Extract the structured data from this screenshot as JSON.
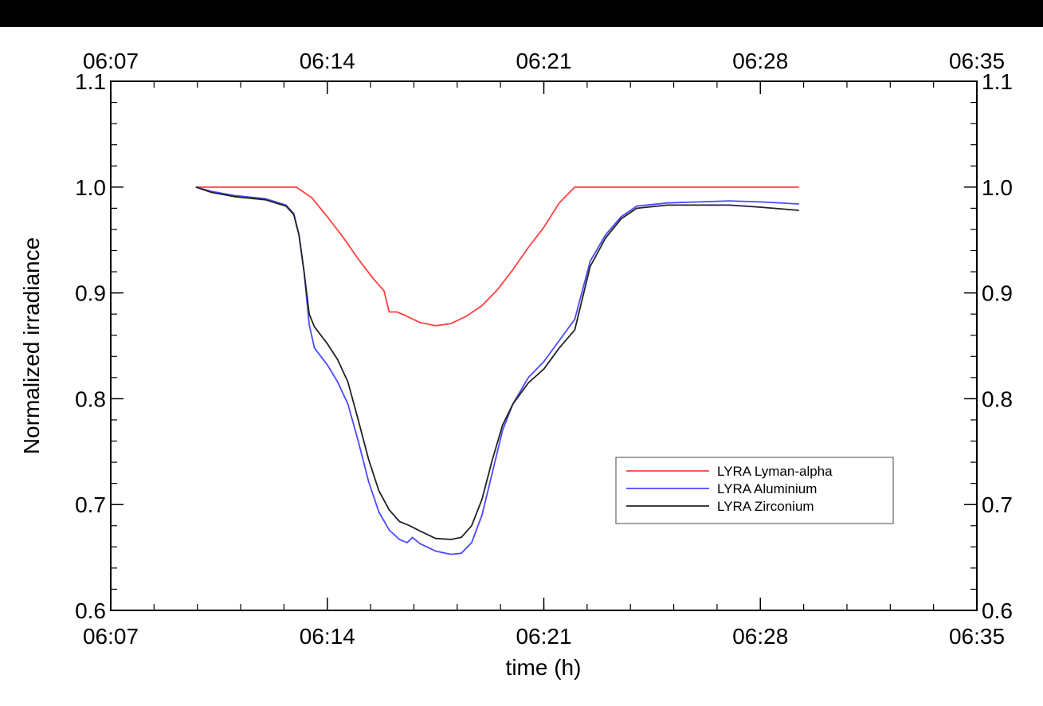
{
  "chart_data": {
    "type": "line",
    "xlabel": "time (h)",
    "ylabel": "Normalized irradiance",
    "xlim": [
      "06:07",
      "06:35"
    ],
    "ylim": [
      0.6,
      1.1
    ],
    "x_ticks": [
      "06:07",
      "06:14",
      "06:21",
      "06:28",
      "06:35"
    ],
    "y_ticks": [
      "0.6",
      "0.7",
      "0.8",
      "0.9",
      "1.0",
      "1.1"
    ],
    "top_axis_ticks": [
      "06:07",
      "06:14",
      "06:21",
      "06:28",
      "06:35"
    ],
    "right_axis_ticks": [
      "0.6",
      "0.7",
      "0.8",
      "0.9",
      "1.0",
      "1.1"
    ],
    "grid": false,
    "legend_position": "lower-right",
    "series": [
      {
        "name": "LYRA Lyman-alpha",
        "color": "#ff4040",
        "points": [
          [
            "06:09:45",
            1.0
          ],
          [
            "06:10:30",
            1.0
          ],
          [
            "06:12:00",
            1.0
          ],
          [
            "06:13:00",
            1.0
          ],
          [
            "06:13:30",
            0.99
          ],
          [
            "06:14:00",
            0.972
          ],
          [
            "06:14:30",
            0.953
          ],
          [
            "06:15:00",
            0.932
          ],
          [
            "06:15:30",
            0.913
          ],
          [
            "06:15:50",
            0.902
          ],
          [
            "06:16:00",
            0.882
          ],
          [
            "06:16:15",
            0.882
          ],
          [
            "06:16:30",
            0.879
          ],
          [
            "06:17:00",
            0.872
          ],
          [
            "06:17:30",
            0.869
          ],
          [
            "06:18:00",
            0.871
          ],
          [
            "06:18:30",
            0.878
          ],
          [
            "06:19:00",
            0.888
          ],
          [
            "06:19:30",
            0.903
          ],
          [
            "06:20:00",
            0.922
          ],
          [
            "06:20:30",
            0.943
          ],
          [
            "06:21:00",
            0.962
          ],
          [
            "06:21:30",
            0.985
          ],
          [
            "06:22:00",
            1.0
          ],
          [
            "06:23:00",
            1.0
          ],
          [
            "06:25:00",
            1.0
          ],
          [
            "06:27:00",
            1.0
          ],
          [
            "06:29:15",
            1.0
          ]
        ]
      },
      {
        "name": "LYRA Aluminium",
        "color": "#4a4aff",
        "points": [
          [
            "06:09:45",
            1.0
          ],
          [
            "06:10:15",
            0.996
          ],
          [
            "06:11:00",
            0.992
          ],
          [
            "06:12:00",
            0.989
          ],
          [
            "06:12:40",
            0.983
          ],
          [
            "06:12:55",
            0.975
          ],
          [
            "06:13:05",
            0.955
          ],
          [
            "06:13:15",
            0.92
          ],
          [
            "06:13:25",
            0.87
          ],
          [
            "06:13:35",
            0.848
          ],
          [
            "06:14:00",
            0.832
          ],
          [
            "06:14:20",
            0.816
          ],
          [
            "06:14:40",
            0.795
          ],
          [
            "06:15:00",
            0.76
          ],
          [
            "06:15:20",
            0.722
          ],
          [
            "06:15:40",
            0.693
          ],
          [
            "06:16:00",
            0.676
          ],
          [
            "06:16:20",
            0.667
          ],
          [
            "06:16:35",
            0.664
          ],
          [
            "06:16:45",
            0.669
          ],
          [
            "06:17:00",
            0.663
          ],
          [
            "06:17:30",
            0.656
          ],
          [
            "06:18:00",
            0.653
          ],
          [
            "06:18:20",
            0.654
          ],
          [
            "06:18:40",
            0.664
          ],
          [
            "06:19:00",
            0.69
          ],
          [
            "06:19:20",
            0.73
          ],
          [
            "06:19:40",
            0.77
          ],
          [
            "06:20:00",
            0.795
          ],
          [
            "06:20:30",
            0.82
          ],
          [
            "06:21:00",
            0.835
          ],
          [
            "06:21:30",
            0.855
          ],
          [
            "06:22:00",
            0.875
          ],
          [
            "06:22:30",
            0.93
          ],
          [
            "06:23:00",
            0.955
          ],
          [
            "06:23:30",
            0.972
          ],
          [
            "06:24:00",
            0.982
          ],
          [
            "06:25:00",
            0.985
          ],
          [
            "06:26:00",
            0.986
          ],
          [
            "06:27:00",
            0.987
          ],
          [
            "06:28:00",
            0.986
          ],
          [
            "06:29:15",
            0.984
          ]
        ]
      },
      {
        "name": "LYRA Zirconium",
        "color": "#222222",
        "points": [
          [
            "06:09:45",
            1.0
          ],
          [
            "06:10:15",
            0.995
          ],
          [
            "06:11:00",
            0.991
          ],
          [
            "06:12:00",
            0.988
          ],
          [
            "06:12:40",
            0.982
          ],
          [
            "06:12:55",
            0.974
          ],
          [
            "06:13:05",
            0.955
          ],
          [
            "06:13:15",
            0.92
          ],
          [
            "06:13:25",
            0.88
          ],
          [
            "06:13:35",
            0.868
          ],
          [
            "06:14:00",
            0.852
          ],
          [
            "06:14:20",
            0.837
          ],
          [
            "06:14:40",
            0.816
          ],
          [
            "06:15:00",
            0.78
          ],
          [
            "06:15:20",
            0.743
          ],
          [
            "06:15:40",
            0.713
          ],
          [
            "06:16:00",
            0.695
          ],
          [
            "06:16:20",
            0.684
          ],
          [
            "06:16:40",
            0.68
          ],
          [
            "06:17:00",
            0.675
          ],
          [
            "06:17:30",
            0.668
          ],
          [
            "06:18:00",
            0.667
          ],
          [
            "06:18:20",
            0.669
          ],
          [
            "06:18:40",
            0.68
          ],
          [
            "06:19:00",
            0.705
          ],
          [
            "06:19:20",
            0.742
          ],
          [
            "06:19:40",
            0.775
          ],
          [
            "06:20:00",
            0.795
          ],
          [
            "06:20:30",
            0.815
          ],
          [
            "06:21:00",
            0.828
          ],
          [
            "06:21:30",
            0.848
          ],
          [
            "06:22:00",
            0.865
          ],
          [
            "06:22:30",
            0.925
          ],
          [
            "06:23:00",
            0.952
          ],
          [
            "06:23:30",
            0.97
          ],
          [
            "06:24:00",
            0.98
          ],
          [
            "06:25:00",
            0.983
          ],
          [
            "06:26:00",
            0.983
          ],
          [
            "06:27:00",
            0.983
          ],
          [
            "06:28:00",
            0.981
          ],
          [
            "06:29:15",
            0.978
          ]
        ]
      }
    ]
  }
}
